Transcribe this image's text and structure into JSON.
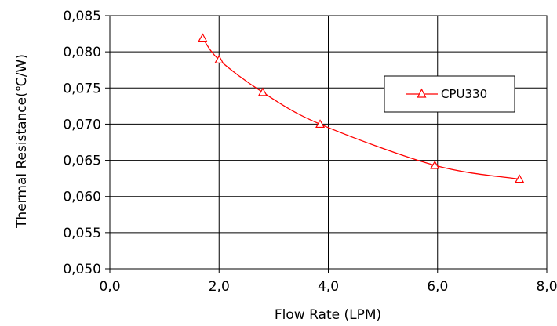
{
  "chart_data": {
    "type": "line",
    "title": "",
    "xlabel": "Flow Rate (LPM)",
    "ylabel": "Thermal Resistance(℃/W)",
    "xlim": [
      0,
      8
    ],
    "ylim": [
      0.05,
      0.085
    ],
    "x_ticks": [
      "0,0",
      "2,0",
      "4,0",
      "6,0",
      "8,0"
    ],
    "y_ticks": [
      "0,050",
      "0,055",
      "0,060",
      "0,065",
      "0,070",
      "0,075",
      "0,080",
      "0,085"
    ],
    "grid": true,
    "legend_position": "right",
    "series": [
      {
        "name": "CPU330",
        "color": "#ff0000",
        "marker": "triangle",
        "x": [
          1.7,
          2.0,
          2.8,
          3.85,
          5.95,
          7.5
        ],
        "y": [
          0.0819,
          0.0789,
          0.0744,
          0.07,
          0.0643,
          0.0624
        ]
      }
    ]
  }
}
